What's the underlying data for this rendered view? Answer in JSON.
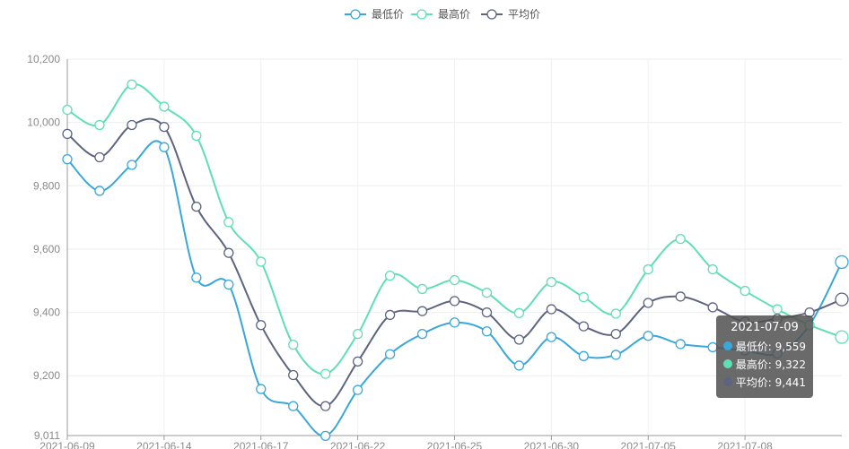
{
  "chart_data": {
    "type": "line",
    "x": [
      "2021-06-09",
      "2021-06-10",
      "2021-06-11",
      "2021-06-12",
      "2021-06-14",
      "2021-06-15",
      "2021-06-16",
      "2021-06-17",
      "2021-06-18",
      "2021-06-19",
      "2021-06-21",
      "2021-06-22",
      "2021-06-23",
      "2021-06-24",
      "2021-06-25",
      "2021-06-26",
      "2021-06-28",
      "2021-06-30",
      "2021-07-01",
      "2021-07-02",
      "2021-07-05",
      "2021-07-06",
      "2021-07-07",
      "2021-07-08",
      "2021-07-09"
    ],
    "x_tick_labels": [
      "2021-06-09",
      "2021-06-14",
      "2021-06-17",
      "2021-06-22",
      "2021-06-25",
      "2021-06-30",
      "2021-07-05",
      "2021-07-08"
    ],
    "x_tick_indices": [
      0,
      3,
      6,
      9,
      12,
      15,
      18,
      21
    ],
    "y_ticks": [
      9011,
      9200,
      9400,
      9600,
      9800,
      10000,
      10200
    ],
    "y_tick_labels": [
      "9,011",
      "9,200",
      "9,400",
      "9,600",
      "9,800",
      "10,000",
      "10,200"
    ],
    "ylim": [
      9011,
      10200
    ],
    "grid": true,
    "legend_position": "top-center",
    "series": [
      {
        "name": "最低价",
        "color": "#3aa7d9",
        "values": [
          9884,
          9784,
          9866,
          9922,
          9510,
          9488,
          9158,
          9104,
          9010,
          9155,
          9268,
          9332,
          9368,
          9340,
          9232,
          9322,
          9262,
          9266,
          9326,
          9300,
          9290,
          9280,
          9270,
          9360,
          9559
        ]
      },
      {
        "name": "最高价",
        "color": "#5fdfb6",
        "values": [
          10040,
          9992,
          10120,
          10050,
          9958,
          9685,
          9560,
          9298,
          9206,
          9332,
          9516,
          9474,
          9502,
          9462,
          9398,
          9496,
          9448,
          9396,
          9536,
          9632,
          9536,
          9468,
          9410,
          9360,
          9322
        ]
      },
      {
        "name": "平均价",
        "color": "#5c6480",
        "values": [
          9964,
          9890,
          9992,
          9986,
          9734,
          9588,
          9360,
          9202,
          9104,
          9245,
          9392,
          9404,
          9436,
          9400,
          9314,
          9410,
          9356,
          9332,
          9430,
          9450,
          9416,
          9370,
          9380,
          9400,
          9441
        ]
      }
    ]
  },
  "tooltip": {
    "title": "2021-07-09",
    "rows": [
      {
        "label": "最低价: 9,559",
        "color": "#3aa7d9"
      },
      {
        "label": "最高价: 9,322",
        "color": "#5fdfb6"
      },
      {
        "label": "平均价: 9,441",
        "color": "#5c6480"
      }
    ]
  }
}
